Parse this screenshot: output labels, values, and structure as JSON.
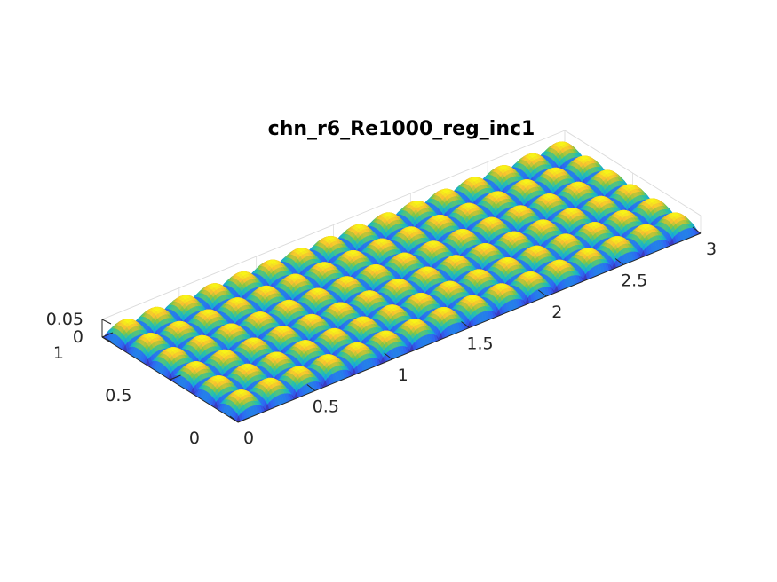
{
  "chart_data": {
    "type": "surface",
    "title": "chn_r6_Re1000_reg_inc1",
    "xlabel": "",
    "ylabel": "",
    "zlabel": "",
    "xlim": [
      0,
      3
    ],
    "ylim": [
      0,
      1
    ],
    "zlim": [
      0,
      0.05
    ],
    "x_ticks": [
      {
        "value": 0,
        "label": "0"
      },
      {
        "value": 0.5,
        "label": "0.5"
      },
      {
        "value": 1,
        "label": "1"
      },
      {
        "value": 1.5,
        "label": "1.5"
      },
      {
        "value": 2,
        "label": "2"
      },
      {
        "value": 2.5,
        "label": "2.5"
      },
      {
        "value": 3,
        "label": "3"
      }
    ],
    "y_ticks": [
      {
        "value": 0,
        "label": "0"
      },
      {
        "value": 0.5,
        "label": "0.5"
      },
      {
        "value": 1,
        "label": "1"
      }
    ],
    "z_ticks": [
      {
        "value": 0,
        "label": "0"
      },
      {
        "value": 0.05,
        "label": "0.05"
      }
    ],
    "grid": true,
    "colormap": "parula",
    "colormap_colors": [
      "#3e26a8",
      "#2e64f4",
      "#16a6da",
      "#26c1aa",
      "#8bc53f",
      "#f7c12f",
      "#f9fb14"
    ],
    "surface": {
      "pattern": "periodic bumps",
      "bumps_along_x": 16,
      "bumps_along_y": 6,
      "peak_height": 0.05
    }
  }
}
